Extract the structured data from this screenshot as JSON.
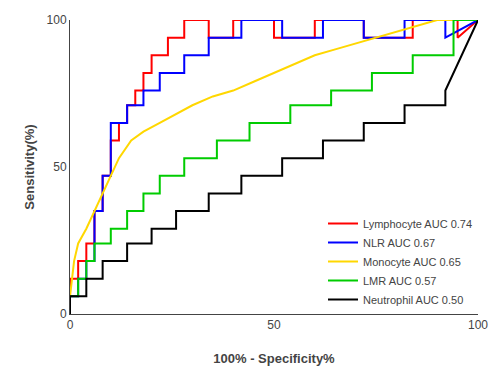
{
  "chart_data": {
    "type": "line",
    "xlabel": "100% - Specificity%",
    "ylabel": "Sensitivity(%)",
    "xlim": [
      0,
      100
    ],
    "ylim": [
      0,
      100
    ],
    "xticks": [
      0,
      50,
      100
    ],
    "yticks": [
      0,
      50,
      100
    ],
    "grid": false,
    "legend": "lower right",
    "series": [
      {
        "name": "Lymphocyte AUC 0.74",
        "color": "#FF0000",
        "x": [
          0,
          0,
          2,
          2,
          4,
          4,
          6,
          6,
          8,
          8,
          10,
          10,
          12,
          12,
          14,
          14,
          16,
          16,
          18,
          18,
          20,
          20,
          24,
          24,
          28,
          28,
          34,
          34,
          40,
          40,
          50,
          50,
          60,
          60,
          72,
          72,
          84,
          84,
          95,
          95,
          100
        ],
        "values": [
          0,
          12,
          12,
          18,
          18,
          24,
          24,
          35,
          35,
          47,
          47,
          59,
          59,
          65,
          65,
          71,
          71,
          76,
          76,
          82,
          82,
          88,
          88,
          94,
          94,
          100,
          100,
          94,
          94,
          100,
          100,
          94,
          94,
          100,
          100,
          94,
          94,
          100,
          100,
          94,
          100
        ]
      },
      {
        "name": "NLR AUC 0.67",
        "color": "#0000FF",
        "x": [
          0,
          0,
          2,
          2,
          4,
          4,
          6,
          6,
          8,
          8,
          10,
          10,
          14,
          14,
          18,
          18,
          22,
          22,
          28,
          28,
          34,
          34,
          42,
          42,
          52,
          52,
          62,
          62,
          72,
          72,
          82,
          82,
          92,
          92,
          100
        ],
        "values": [
          0,
          6,
          6,
          12,
          12,
          18,
          18,
          35,
          35,
          47,
          47,
          65,
          65,
          71,
          71,
          76,
          76,
          82,
          82,
          88,
          88,
          94,
          94,
          100,
          100,
          94,
          94,
          100,
          100,
          94,
          94,
          100,
          100,
          94,
          100
        ]
      },
      {
        "name": "Monocyte AUC 0.65",
        "color": "#FFD700",
        "x": [
          0,
          0,
          1,
          2,
          4,
          6,
          8,
          10,
          12,
          15,
          18,
          22,
          26,
          30,
          35,
          40,
          45,
          50,
          55,
          60,
          65,
          70,
          75,
          80,
          85,
          90,
          95,
          100
        ],
        "values": [
          0,
          6,
          18,
          24,
          29,
          35,
          41,
          47,
          53,
          59,
          62,
          65,
          68,
          71,
          74,
          76,
          79,
          82,
          85,
          88,
          90,
          92,
          94,
          96,
          98,
          100,
          100,
          100
        ]
      },
      {
        "name": "LMR AUC 0.57",
        "color": "#00CC00",
        "x": [
          0,
          0,
          2,
          2,
          4,
          4,
          6,
          6,
          10,
          10,
          14,
          14,
          18,
          18,
          22,
          22,
          28,
          28,
          36,
          36,
          44,
          44,
          54,
          54,
          64,
          64,
          74,
          74,
          84,
          84,
          94,
          94,
          100
        ],
        "values": [
          0,
          6,
          6,
          12,
          12,
          18,
          18,
          24,
          24,
          29,
          29,
          35,
          35,
          41,
          41,
          47,
          47,
          53,
          53,
          59,
          59,
          65,
          65,
          71,
          71,
          76,
          76,
          82,
          82,
          88,
          88,
          100,
          100
        ]
      },
      {
        "name": "Neutrophil AUC 0.50",
        "color": "#000000",
        "x": [
          0,
          0,
          4,
          4,
          8,
          8,
          14,
          14,
          20,
          20,
          26,
          26,
          34,
          34,
          42,
          42,
          52,
          52,
          62,
          62,
          72,
          72,
          82,
          82,
          92,
          92,
          100
        ],
        "values": [
          0,
          6,
          6,
          12,
          12,
          18,
          18,
          24,
          24,
          29,
          29,
          35,
          35,
          41,
          41,
          47,
          47,
          53,
          53,
          59,
          59,
          65,
          65,
          71,
          71,
          76,
          100
        ]
      }
    ]
  }
}
